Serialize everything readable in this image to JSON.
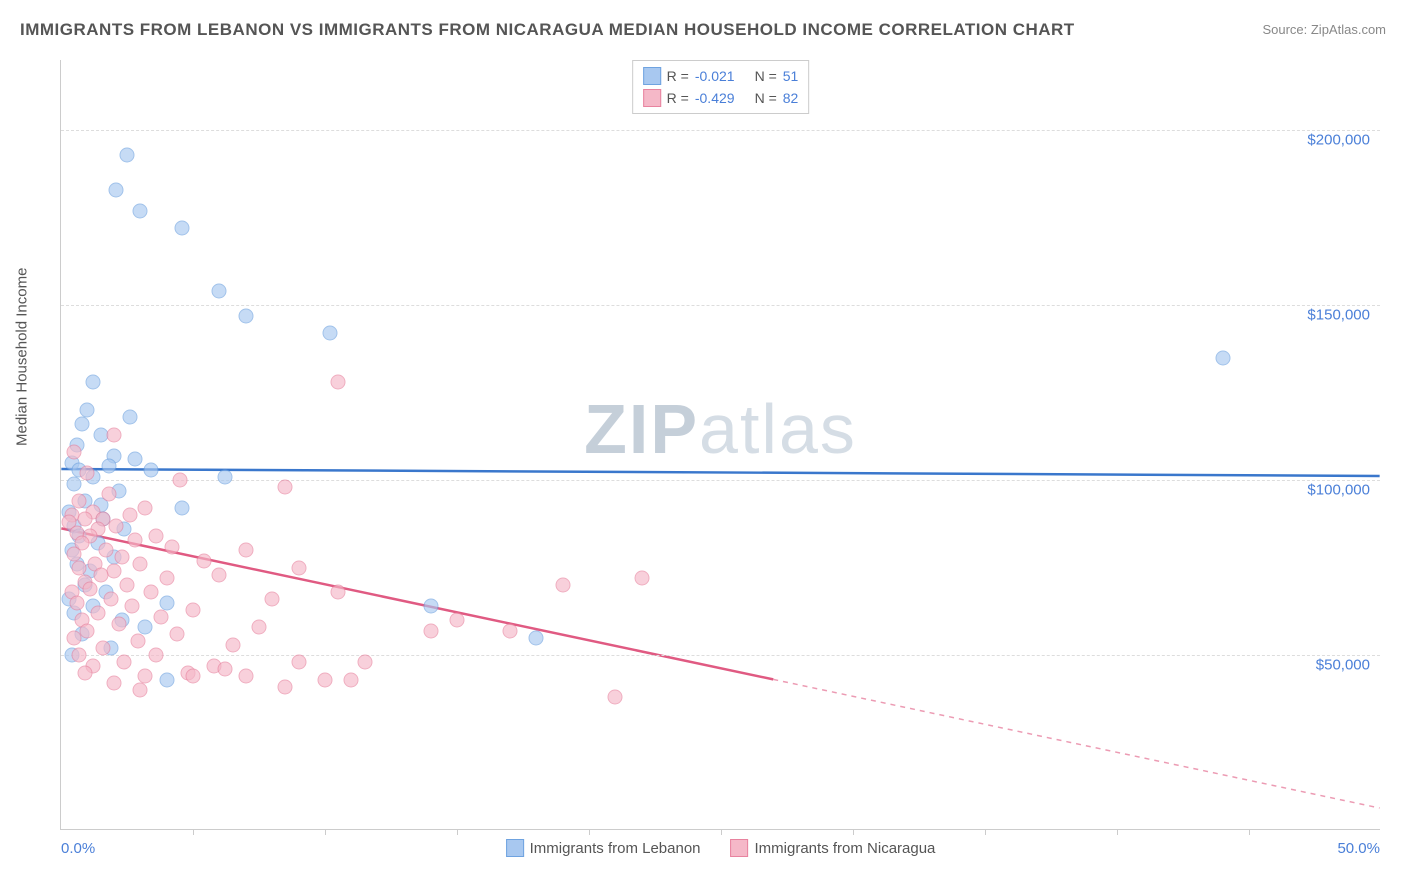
{
  "title": "IMMIGRANTS FROM LEBANON VS IMMIGRANTS FROM NICARAGUA MEDIAN HOUSEHOLD INCOME CORRELATION CHART",
  "source": "Source: ZipAtlas.com",
  "yaxis_title": "Median Household Income",
  "watermark_bold": "ZIP",
  "watermark_light": "atlas",
  "chart": {
    "type": "scatter",
    "background_color": "#ffffff",
    "grid_color": "#dddddd",
    "axis_color": "#cccccc",
    "tick_label_color": "#4a7fd8",
    "x_min": 0.0,
    "x_max": 50.0,
    "x_left_label": "0.0%",
    "x_right_label": "50.0%",
    "x_ticks": [
      5,
      10,
      15,
      20,
      25,
      30,
      35,
      40,
      45
    ],
    "y_min": 0,
    "y_max": 220000,
    "y_ticks": [
      {
        "v": 50000,
        "label": "$50,000"
      },
      {
        "v": 100000,
        "label": "$100,000"
      },
      {
        "v": 150000,
        "label": "$150,000"
      },
      {
        "v": 200000,
        "label": "$200,000"
      }
    ],
    "series": [
      {
        "name": "Immigrants from Lebanon",
        "color_fill": "#a8c8f0",
        "color_stroke": "#6fa3e0",
        "line_color": "#3a77cc",
        "R": "-0.021",
        "N": "51",
        "trend_y_at_xmin": 103000,
        "trend_y_at_xmax": 101000,
        "solid_until_x": 50.0,
        "points": [
          {
            "x": 2.5,
            "y": 193000
          },
          {
            "x": 2.1,
            "y": 183000
          },
          {
            "x": 3.0,
            "y": 177000
          },
          {
            "x": 4.6,
            "y": 172000
          },
          {
            "x": 6.0,
            "y": 154000
          },
          {
            "x": 7.0,
            "y": 147000
          },
          {
            "x": 10.2,
            "y": 142000
          },
          {
            "x": 44.0,
            "y": 135000
          },
          {
            "x": 1.2,
            "y": 128000
          },
          {
            "x": 1.0,
            "y": 120000
          },
          {
            "x": 2.6,
            "y": 118000
          },
          {
            "x": 0.8,
            "y": 116000
          },
          {
            "x": 1.5,
            "y": 113000
          },
          {
            "x": 0.6,
            "y": 110000
          },
          {
            "x": 2.0,
            "y": 107000
          },
          {
            "x": 2.8,
            "y": 106000
          },
          {
            "x": 0.4,
            "y": 105000
          },
          {
            "x": 1.8,
            "y": 104000
          },
          {
            "x": 0.7,
            "y": 103000
          },
          {
            "x": 3.4,
            "y": 103000
          },
          {
            "x": 1.2,
            "y": 101000
          },
          {
            "x": 6.2,
            "y": 101000
          },
          {
            "x": 0.5,
            "y": 99000
          },
          {
            "x": 2.2,
            "y": 97000
          },
          {
            "x": 0.9,
            "y": 94000
          },
          {
            "x": 1.5,
            "y": 93000
          },
          {
            "x": 4.6,
            "y": 92000
          },
          {
            "x": 0.3,
            "y": 91000
          },
          {
            "x": 1.6,
            "y": 89000
          },
          {
            "x": 0.5,
            "y": 87000
          },
          {
            "x": 2.4,
            "y": 86000
          },
          {
            "x": 0.7,
            "y": 84000
          },
          {
            "x": 1.4,
            "y": 82000
          },
          {
            "x": 0.4,
            "y": 80000
          },
          {
            "x": 2.0,
            "y": 78000
          },
          {
            "x": 0.6,
            "y": 76000
          },
          {
            "x": 1.1,
            "y": 74000
          },
          {
            "x": 14.0,
            "y": 64000
          },
          {
            "x": 0.9,
            "y": 70000
          },
          {
            "x": 1.7,
            "y": 68000
          },
          {
            "x": 0.3,
            "y": 66000
          },
          {
            "x": 4.0,
            "y": 65000
          },
          {
            "x": 18.0,
            "y": 55000
          },
          {
            "x": 1.2,
            "y": 64000
          },
          {
            "x": 0.5,
            "y": 62000
          },
          {
            "x": 2.3,
            "y": 60000
          },
          {
            "x": 3.2,
            "y": 58000
          },
          {
            "x": 0.8,
            "y": 56000
          },
          {
            "x": 4.0,
            "y": 43000
          },
          {
            "x": 1.9,
            "y": 52000
          },
          {
            "x": 0.4,
            "y": 50000
          }
        ]
      },
      {
        "name": "Immigrants from Nicaragua",
        "color_fill": "#f5b8c8",
        "color_stroke": "#e8839f",
        "line_color": "#e05a82",
        "R": "-0.429",
        "N": "82",
        "trend_y_at_xmin": 86000,
        "trend_y_at_xmax": 6000,
        "solid_until_x": 27.0,
        "points": [
          {
            "x": 10.5,
            "y": 128000
          },
          {
            "x": 2.0,
            "y": 113000
          },
          {
            "x": 0.5,
            "y": 108000
          },
          {
            "x": 1.0,
            "y": 102000
          },
          {
            "x": 4.5,
            "y": 100000
          },
          {
            "x": 8.5,
            "y": 98000
          },
          {
            "x": 1.8,
            "y": 96000
          },
          {
            "x": 0.7,
            "y": 94000
          },
          {
            "x": 3.2,
            "y": 92000
          },
          {
            "x": 1.2,
            "y": 91000
          },
          {
            "x": 0.4,
            "y": 90000
          },
          {
            "x": 2.6,
            "y": 90000
          },
          {
            "x": 1.6,
            "y": 89000
          },
          {
            "x": 0.9,
            "y": 89000
          },
          {
            "x": 0.3,
            "y": 88000
          },
          {
            "x": 2.1,
            "y": 87000
          },
          {
            "x": 1.4,
            "y": 86000
          },
          {
            "x": 0.6,
            "y": 85000
          },
          {
            "x": 3.6,
            "y": 84000
          },
          {
            "x": 1.1,
            "y": 84000
          },
          {
            "x": 2.8,
            "y": 83000
          },
          {
            "x": 0.8,
            "y": 82000
          },
          {
            "x": 4.2,
            "y": 81000
          },
          {
            "x": 7.0,
            "y": 80000
          },
          {
            "x": 1.7,
            "y": 80000
          },
          {
            "x": 0.5,
            "y": 79000
          },
          {
            "x": 2.3,
            "y": 78000
          },
          {
            "x": 5.4,
            "y": 77000
          },
          {
            "x": 1.3,
            "y": 76000
          },
          {
            "x": 3.0,
            "y": 76000
          },
          {
            "x": 0.7,
            "y": 75000
          },
          {
            "x": 9.0,
            "y": 75000
          },
          {
            "x": 2.0,
            "y": 74000
          },
          {
            "x": 1.5,
            "y": 73000
          },
          {
            "x": 4.0,
            "y": 72000
          },
          {
            "x": 6.0,
            "y": 73000
          },
          {
            "x": 0.9,
            "y": 71000
          },
          {
            "x": 2.5,
            "y": 70000
          },
          {
            "x": 10.5,
            "y": 68000
          },
          {
            "x": 22.0,
            "y": 72000
          },
          {
            "x": 8.0,
            "y": 66000
          },
          {
            "x": 1.1,
            "y": 69000
          },
          {
            "x": 3.4,
            "y": 68000
          },
          {
            "x": 0.4,
            "y": 68000
          },
          {
            "x": 19.0,
            "y": 70000
          },
          {
            "x": 1.9,
            "y": 66000
          },
          {
            "x": 0.6,
            "y": 65000
          },
          {
            "x": 2.7,
            "y": 64000
          },
          {
            "x": 5.0,
            "y": 63000
          },
          {
            "x": 15.0,
            "y": 60000
          },
          {
            "x": 1.4,
            "y": 62000
          },
          {
            "x": 3.8,
            "y": 61000
          },
          {
            "x": 0.8,
            "y": 60000
          },
          {
            "x": 7.5,
            "y": 58000
          },
          {
            "x": 2.2,
            "y": 59000
          },
          {
            "x": 17.0,
            "y": 57000
          },
          {
            "x": 1.0,
            "y": 57000
          },
          {
            "x": 4.4,
            "y": 56000
          },
          {
            "x": 0.5,
            "y": 55000
          },
          {
            "x": 14.0,
            "y": 57000
          },
          {
            "x": 6.5,
            "y": 53000
          },
          {
            "x": 2.9,
            "y": 54000
          },
          {
            "x": 1.6,
            "y": 52000
          },
          {
            "x": 11.5,
            "y": 48000
          },
          {
            "x": 0.7,
            "y": 50000
          },
          {
            "x": 3.6,
            "y": 50000
          },
          {
            "x": 9.0,
            "y": 48000
          },
          {
            "x": 5.8,
            "y": 47000
          },
          {
            "x": 2.4,
            "y": 48000
          },
          {
            "x": 1.2,
            "y": 47000
          },
          {
            "x": 4.8,
            "y": 45000
          },
          {
            "x": 7.0,
            "y": 44000
          },
          {
            "x": 0.9,
            "y": 45000
          },
          {
            "x": 3.2,
            "y": 44000
          },
          {
            "x": 10.0,
            "y": 43000
          },
          {
            "x": 6.2,
            "y": 46000
          },
          {
            "x": 2.0,
            "y": 42000
          },
          {
            "x": 8.5,
            "y": 41000
          },
          {
            "x": 5.0,
            "y": 44000
          },
          {
            "x": 11.0,
            "y": 43000
          },
          {
            "x": 21.0,
            "y": 38000
          },
          {
            "x": 3.0,
            "y": 40000
          }
        ]
      }
    ]
  },
  "legend_top_prefix_R": "R = ",
  "legend_top_prefix_N": "N = "
}
